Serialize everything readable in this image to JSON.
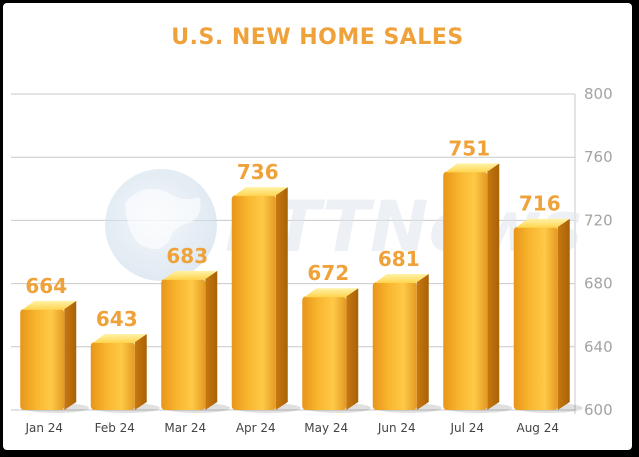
{
  "chart_data": {
    "type": "bar",
    "title": "U.S. NEW HOME SALES",
    "categories": [
      "Jan 24",
      "Feb 24",
      "Mar 24",
      "Apr 24",
      "May 24",
      "Jun 24",
      "Jul 24",
      "Aug 24"
    ],
    "values": [
      664,
      643,
      683,
      736,
      672,
      681,
      751,
      716
    ],
    "ylim": [
      600,
      800
    ],
    "yticks": [
      600,
      640,
      680,
      720,
      760,
      800
    ],
    "xlabel": "",
    "ylabel": "",
    "grid": true,
    "y_axis_side": "right",
    "bar_color": "#f7b42c",
    "label_color": "#f0a23a",
    "watermark": "FTTNews"
  }
}
